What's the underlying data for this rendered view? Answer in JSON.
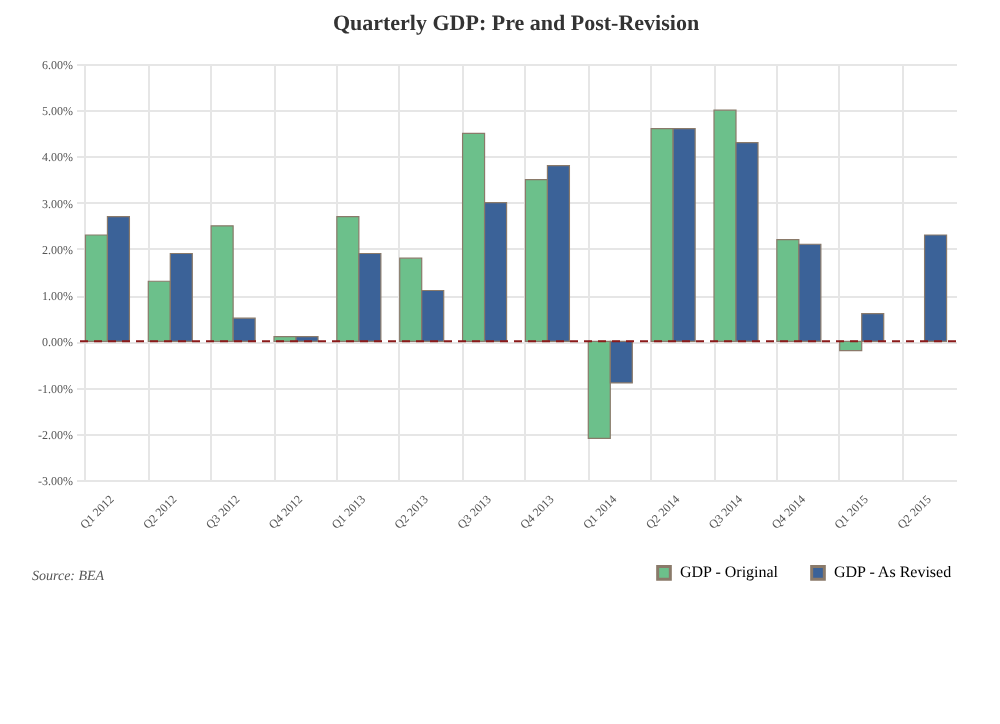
{
  "chart_data": {
    "type": "bar",
    "title": "Quarterly GDP: Pre and Post-Revision",
    "categories": [
      "Q1 2012",
      "Q2 2012",
      "Q3 2012",
      "Q4 2012",
      "Q1 2013",
      "Q2 2013",
      "Q3 2013",
      "Q4 2013",
      "Q1 2014",
      "Q2 2014",
      "Q3 2014",
      "Q4 2014",
      "Q1 2015",
      "Q2 2015"
    ],
    "series": [
      {
        "name": "GDP - Original",
        "color": "#6cc08b",
        "values": [
          2.3,
          1.3,
          2.5,
          0.1,
          2.7,
          1.8,
          4.5,
          3.5,
          -2.1,
          4.6,
          5.0,
          2.2,
          -0.2,
          null
        ]
      },
      {
        "name": "GDP - As Revised",
        "color": "#3b6298",
        "values": [
          2.7,
          1.9,
          0.5,
          0.1,
          1.9,
          1.1,
          3.0,
          3.8,
          -0.9,
          4.6,
          4.3,
          2.1,
          0.6,
          2.3
        ]
      }
    ],
    "ylim": [
      -3,
      6
    ],
    "yticks": [
      {
        "value": -3,
        "label": "-3.00%"
      },
      {
        "value": -2,
        "label": "-2.00%"
      },
      {
        "value": -1,
        "label": "-1.00%"
      },
      {
        "value": 0,
        "label": "0.00%"
      },
      {
        "value": 1,
        "label": "1.00%"
      },
      {
        "value": 2,
        "label": "2.00%"
      },
      {
        "value": 3,
        "label": "3.00%"
      },
      {
        "value": 4,
        "label": "4.00%"
      },
      {
        "value": 5,
        "label": "5.00%"
      },
      {
        "value": 6,
        "label": "6.00%"
      }
    ],
    "ref_lines": [
      {
        "axis": "y",
        "value": 0,
        "color": "#8b1a1a",
        "line_style": "dashed"
      }
    ],
    "grid": true,
    "legend": "bottom right",
    "annotations": [
      "Source: BEA"
    ]
  }
}
